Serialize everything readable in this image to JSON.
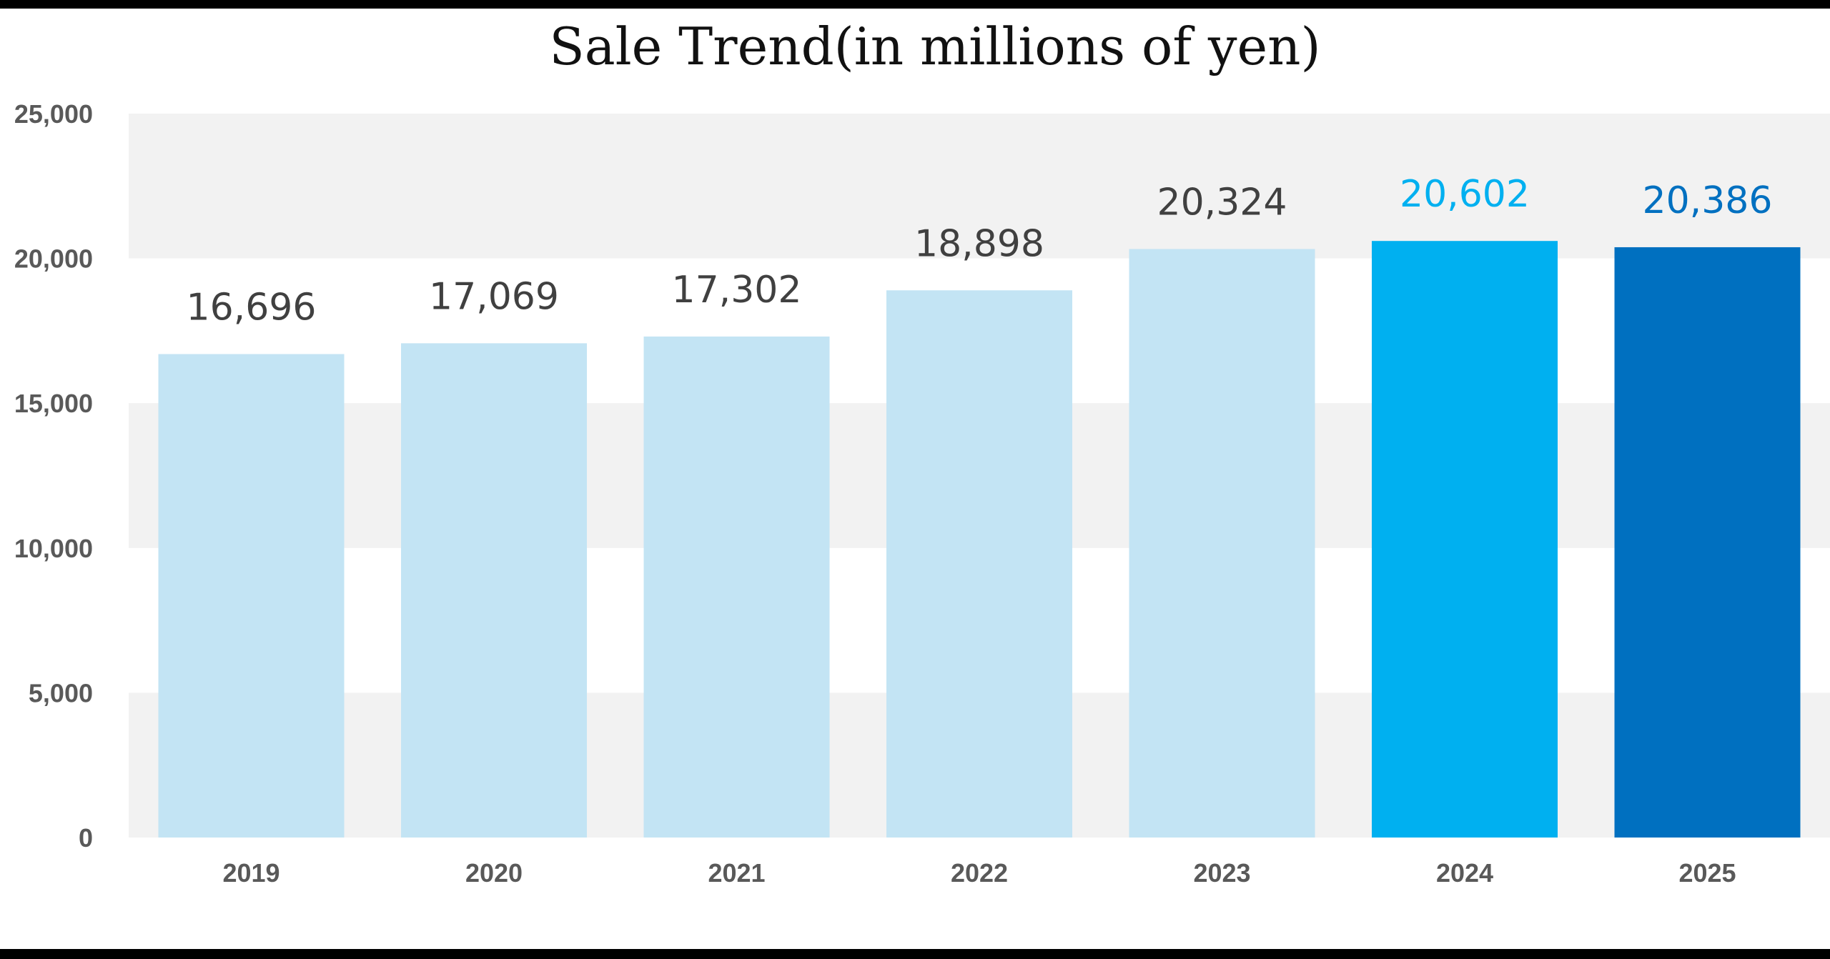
{
  "chart_data": {
    "type": "bar",
    "title": "Sale Trend(in millions of yen)",
    "xlabel": "",
    "ylabel": "",
    "categories": [
      "2019",
      "2020",
      "2021",
      "2022",
      "2023",
      "2024",
      "2025"
    ],
    "values": [
      16696,
      17069,
      17302,
      18898,
      20324,
      20602,
      20386
    ],
    "value_labels": [
      "16,696",
      "17,069",
      "17,302",
      "18,898",
      "20,324",
      "20,602",
      "20,386"
    ],
    "ylim": [
      0,
      25000
    ],
    "yticks": [
      0,
      5000,
      10000,
      15000,
      20000,
      25000
    ],
    "ytick_labels": [
      "0",
      "5,000",
      "10,000",
      "15,000",
      "20,000",
      "25,000"
    ],
    "grid": "alternating horizontal bands",
    "legend": "none",
    "bar_colors": [
      "#c3e4f4",
      "#c3e4f4",
      "#c3e4f4",
      "#c3e4f4",
      "#c3e4f4",
      "#00b0f0",
      "#0070c0"
    ],
    "label_colors": [
      "#404040",
      "#404040",
      "#404040",
      "#404040",
      "#404040",
      "#00b0f0",
      "#0070c0"
    ],
    "band_color": "#f2f2f2"
  }
}
